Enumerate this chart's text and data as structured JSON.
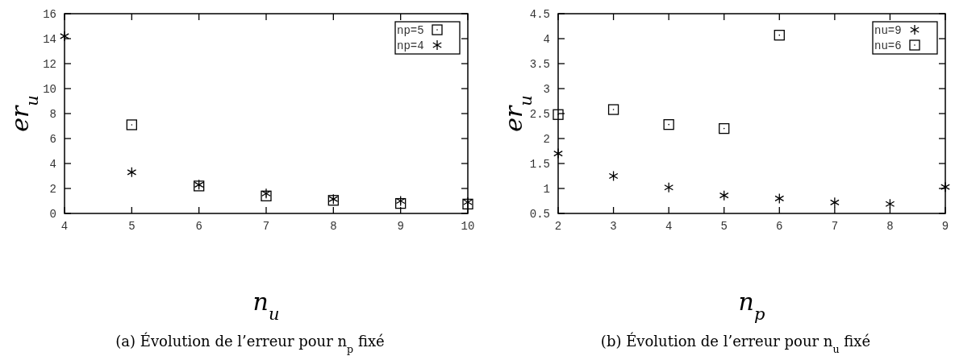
{
  "chart_data": [
    {
      "type": "scatter",
      "title": "(a)  Évolution de l’erreur pour n$_{p}$ fixé",
      "xlabel": "n$_{u}$",
      "ylabel": "er$_{u}$",
      "xlim": [
        4,
        10
      ],
      "xticks": [
        4,
        5,
        6,
        7,
        8,
        9,
        10
      ],
      "ylim": [
        0,
        16
      ],
      "yticks": [
        0,
        2,
        4,
        6,
        8,
        10,
        12,
        14,
        16
      ],
      "legend": "top right",
      "grid": false,
      "series": [
        {
          "name": "np=5",
          "color": "#000000",
          "marker": "square",
          "x": [
            5,
            6,
            7,
            8,
            9,
            10
          ],
          "values": [
            7.1,
            2.2,
            1.4,
            1.05,
            0.8,
            0.75
          ]
        },
        {
          "name": "np=4",
          "color": "#000000",
          "marker": "cross",
          "x": [
            4,
            5,
            6,
            7,
            8,
            9,
            10
          ],
          "values": [
            14.2,
            3.3,
            2.3,
            1.6,
            1.15,
            1.0,
            0.9
          ]
        }
      ]
    },
    {
      "type": "scatter",
      "title": "(b)  Évolution de l’erreur pour n$_{u}$ fixé",
      "xlabel": "n$_{p}$",
      "ylabel": "er$_{u}$",
      "xlim": [
        2,
        9
      ],
      "xticks": [
        2,
        3,
        4,
        5,
        6,
        7,
        8,
        9
      ],
      "ylim": [
        0.5,
        4.5
      ],
      "yticks": [
        0.5,
        1,
        1.5,
        2,
        2.5,
        3,
        3.5,
        4,
        4.5
      ],
      "legend": "top right",
      "grid": false,
      "series": [
        {
          "name": "nu=9",
          "color": "#000000",
          "marker": "cross",
          "x": [
            2,
            3,
            4,
            5,
            6,
            7,
            8,
            9
          ],
          "values": [
            1.7,
            1.25,
            1.02,
            0.86,
            0.8,
            0.72,
            0.69,
            1.03
          ]
        },
        {
          "name": "nu=6",
          "color": "#000000",
          "marker": "square",
          "x": [
            2,
            3,
            4,
            5,
            6
          ],
          "values": [
            2.48,
            2.58,
            2.28,
            2.2,
            4.07
          ]
        }
      ]
    }
  ]
}
